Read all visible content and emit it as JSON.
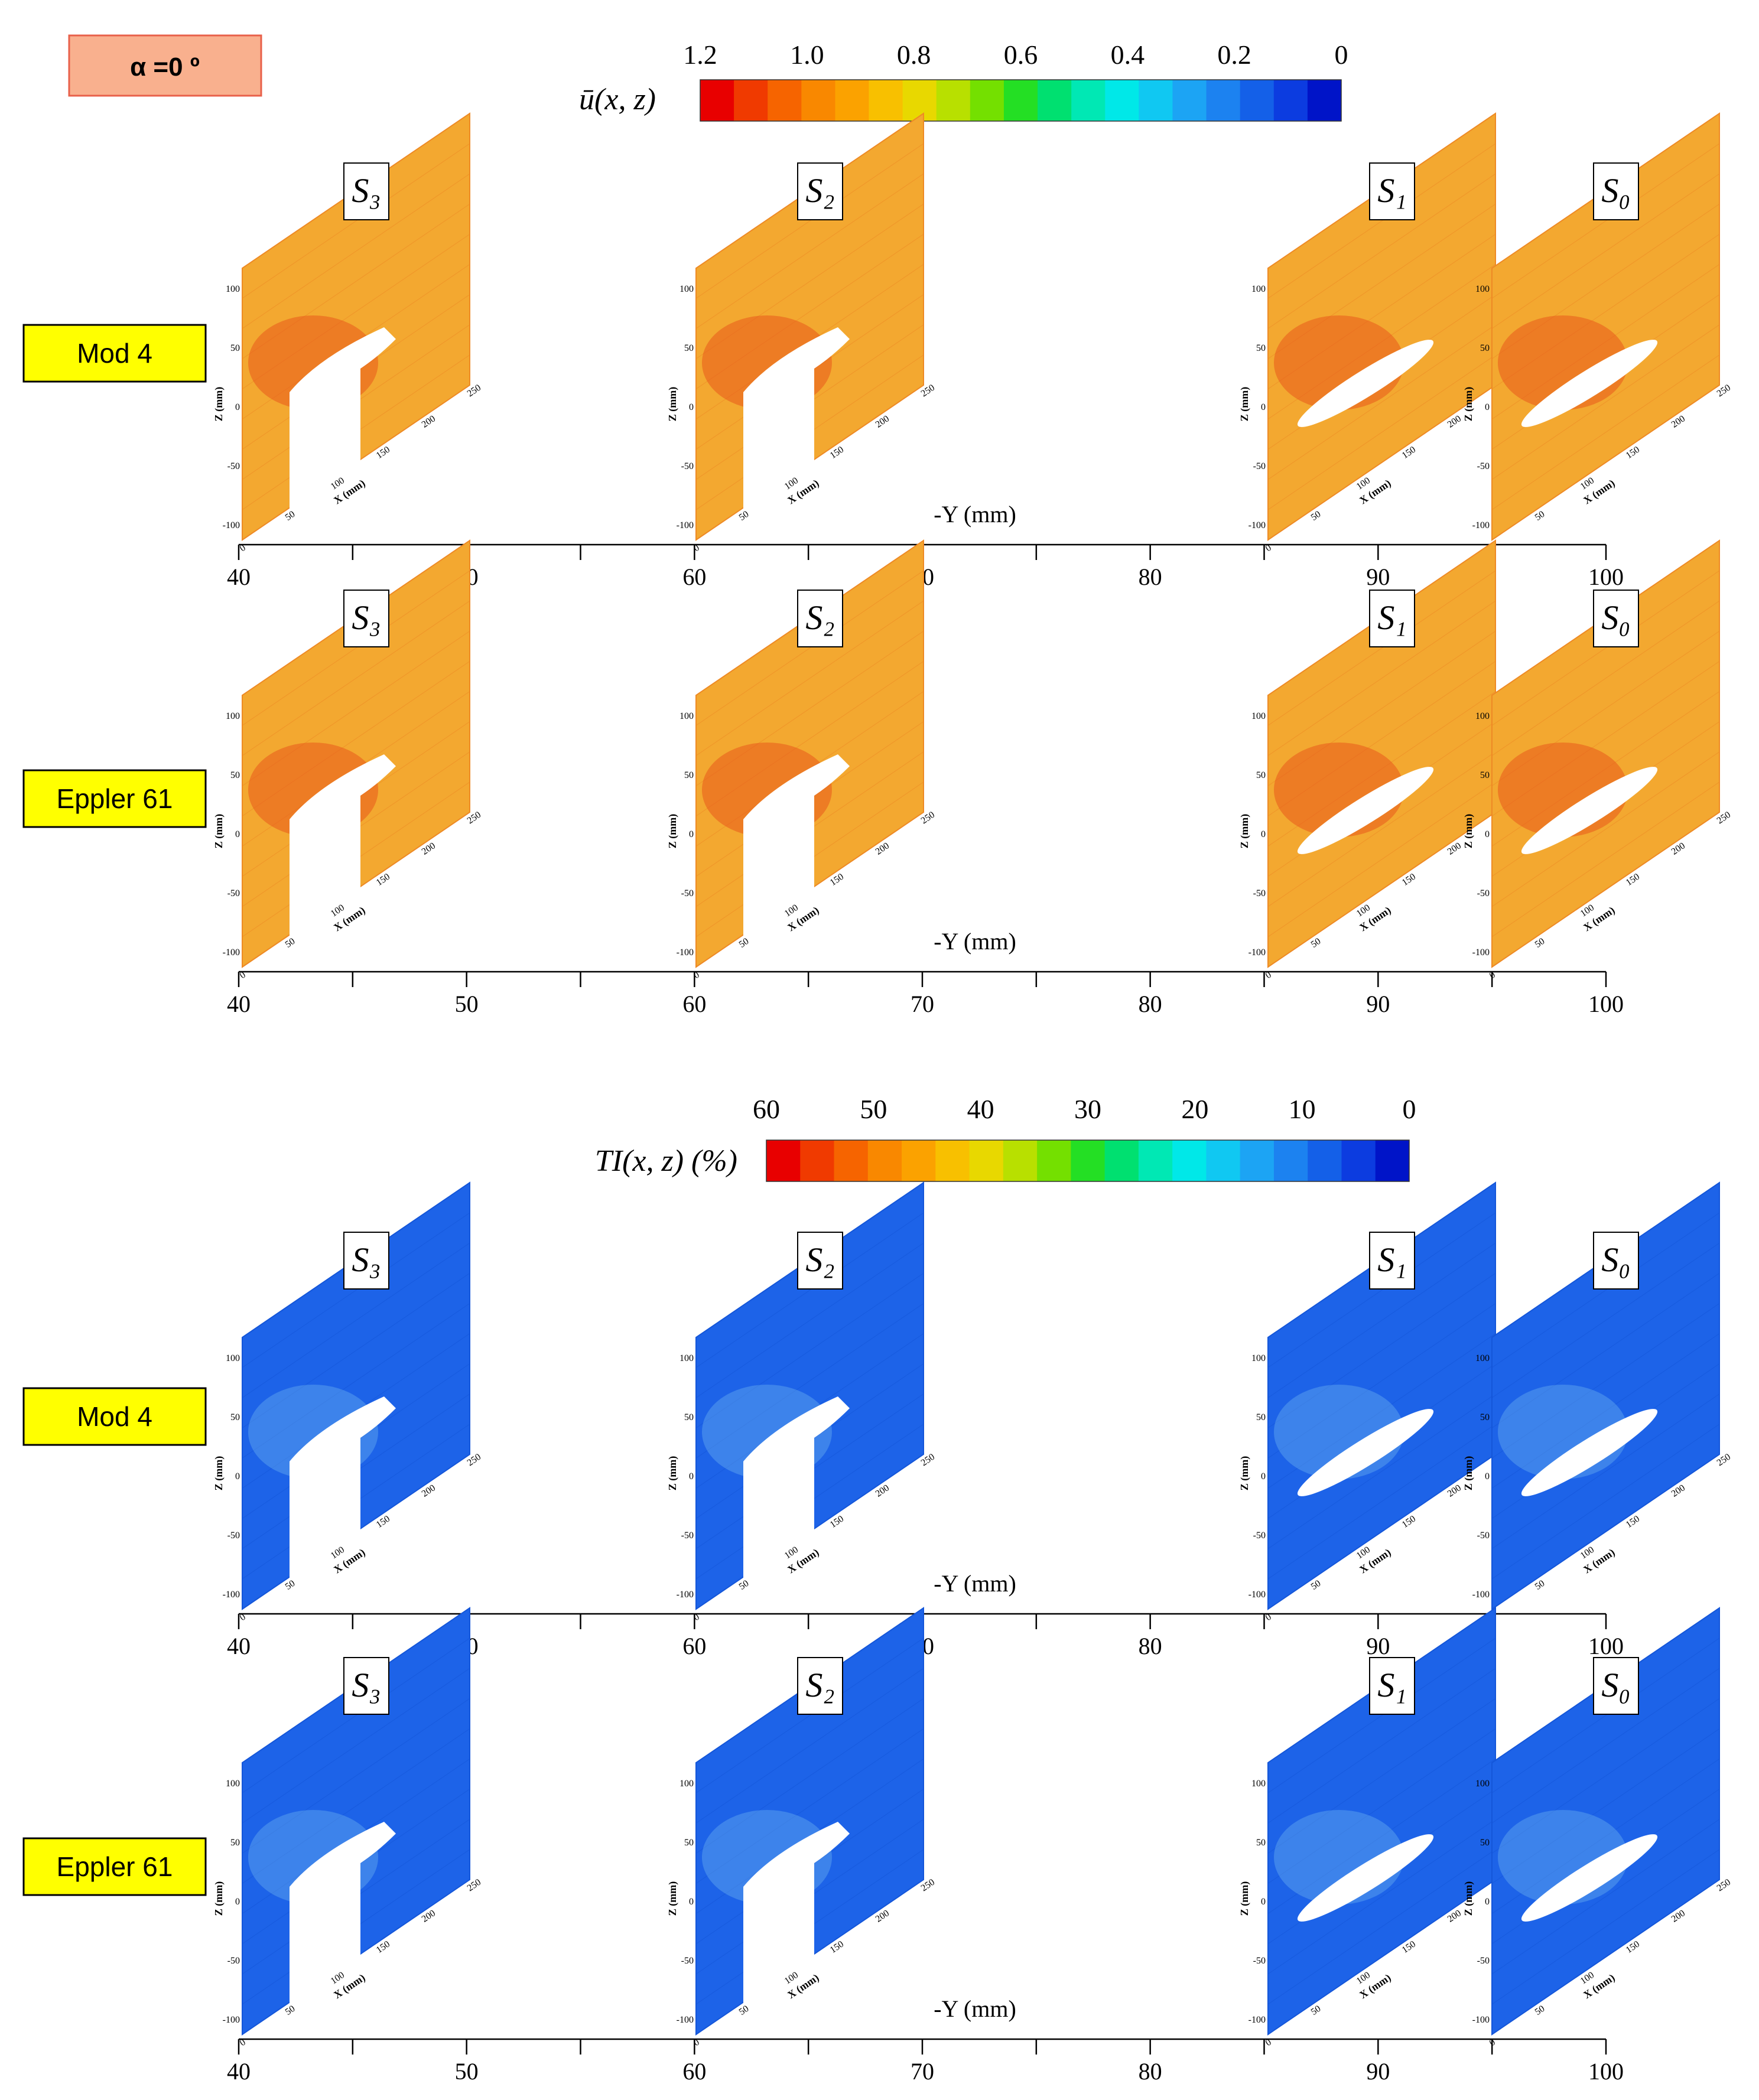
{
  "angle_label": "α =0 º",
  "row_labels": [
    "Mod 4",
    "Eppler 61"
  ],
  "section_labels": [
    "S₃",
    "S₂",
    "S₁",
    "S₀"
  ],
  "colors": {
    "angle_box_fill": "#f9b08e",
    "angle_box_stroke": "#e8604a",
    "row_label_fill": "#ffff00",
    "velocity_plane": "#f3a830",
    "velocity_plane_dark": "#ee8a25",
    "velocity_hotspot": "#e8571c",
    "ti_plane": "#1d63e8",
    "ti_plane_dark": "#1456d9",
    "wake": "#7ac0f2",
    "model_cutout": "#ffffff"
  },
  "chart_data": [
    {
      "type": "heatmap",
      "title": "ū(x, z)",
      "colorbar_label": "ū(x, z)",
      "colorbar_ticks": [
        "1.2",
        "1.0",
        "0.8",
        "0.6",
        "0.4",
        "0.2",
        "0"
      ],
      "colorbar_range": [
        1.2,
        0
      ],
      "colorbar_colors": [
        "#e80000",
        "#f03a00",
        "#f66400",
        "#f98800",
        "#fba200",
        "#f8c000",
        "#e8d800",
        "#b8e000",
        "#74e000",
        "#24df24",
        "#00e070",
        "#00e8b4",
        "#00e8e8",
        "#10c8f2",
        "#1ca4f4",
        "#1c82f0",
        "#1460e8",
        "#0c3ce0",
        "#0014c8"
      ],
      "axis_label_y": "-Y (mm)",
      "y_ticks": [
        "40",
        "50",
        "60",
        "70",
        "80",
        "90",
        "100"
      ],
      "y_range": [
        40,
        100
      ],
      "section_positions": [
        40,
        60,
        85,
        95
      ],
      "plane_axes": {
        "z_label": "Z (mm)",
        "x_label": "X (mm)",
        "z_ticks": [
          "100",
          "50",
          "0",
          "-50",
          "-100"
        ],
        "x_ticks": [
          "0",
          "50",
          "100",
          "150",
          "200",
          "250"
        ]
      },
      "rows": [
        {
          "model": "Mod 4",
          "planes": [
            {
              "section": "S₃",
              "y": 40,
              "cutout": "wing"
            },
            {
              "section": "S₂",
              "y": 60,
              "cutout": "wing"
            },
            {
              "section": "S₁",
              "y": 85,
              "cutout": "wake"
            },
            {
              "section": "S₀",
              "y": 95,
              "cutout": "wake"
            }
          ]
        },
        {
          "model": "Eppler 61",
          "planes": [
            {
              "section": "S₃",
              "y": 40,
              "cutout": "wing"
            },
            {
              "section": "S₂",
              "y": 60,
              "cutout": "wing"
            },
            {
              "section": "S₁",
              "y": 85,
              "cutout": "wake"
            },
            {
              "section": "S₀",
              "y": 95,
              "cutout": "wake"
            }
          ]
        }
      ]
    },
    {
      "type": "heatmap",
      "title": "TI(x, z) (%)",
      "colorbar_label": "TI(x, z) (%)",
      "colorbar_ticks": [
        "60",
        "50",
        "40",
        "30",
        "20",
        "10",
        "0"
      ],
      "colorbar_range": [
        60,
        0
      ],
      "colorbar_colors": [
        "#e80000",
        "#f03a00",
        "#f66400",
        "#f98800",
        "#fba200",
        "#f8c000",
        "#e8d800",
        "#b8e000",
        "#74e000",
        "#24df24",
        "#00e070",
        "#00e8b4",
        "#00e8e8",
        "#10c8f2",
        "#1ca4f4",
        "#1c82f0",
        "#1460e8",
        "#0c3ce0",
        "#0014c8"
      ],
      "axis_label_y": "-Y (mm)",
      "y_ticks": [
        "40",
        "50",
        "60",
        "70",
        "80",
        "90",
        "100"
      ],
      "y_range": [
        40,
        100
      ],
      "section_positions": [
        40,
        60,
        85,
        95
      ],
      "plane_axes": {
        "z_label": "Z (mm)",
        "x_label": "X (mm)",
        "z_ticks": [
          "100",
          "50",
          "0",
          "-50",
          "-100"
        ],
        "x_ticks": [
          "0",
          "50",
          "100",
          "150",
          "200",
          "250"
        ]
      },
      "rows": [
        {
          "model": "Mod 4",
          "planes": [
            {
              "section": "S₃",
              "y": 40,
              "cutout": "wing"
            },
            {
              "section": "S₂",
              "y": 60,
              "cutout": "wing"
            },
            {
              "section": "S₁",
              "y": 85,
              "cutout": "wake"
            },
            {
              "section": "S₀",
              "y": 95,
              "cutout": "wake"
            }
          ]
        },
        {
          "model": "Eppler 61",
          "planes": [
            {
              "section": "S₃",
              "y": 40,
              "cutout": "wing"
            },
            {
              "section": "S₂",
              "y": 60,
              "cutout": "wing"
            },
            {
              "section": "S₁",
              "y": 85,
              "cutout": "wake"
            },
            {
              "section": "S₀",
              "y": 95,
              "cutout": "wake"
            }
          ]
        }
      ]
    }
  ]
}
